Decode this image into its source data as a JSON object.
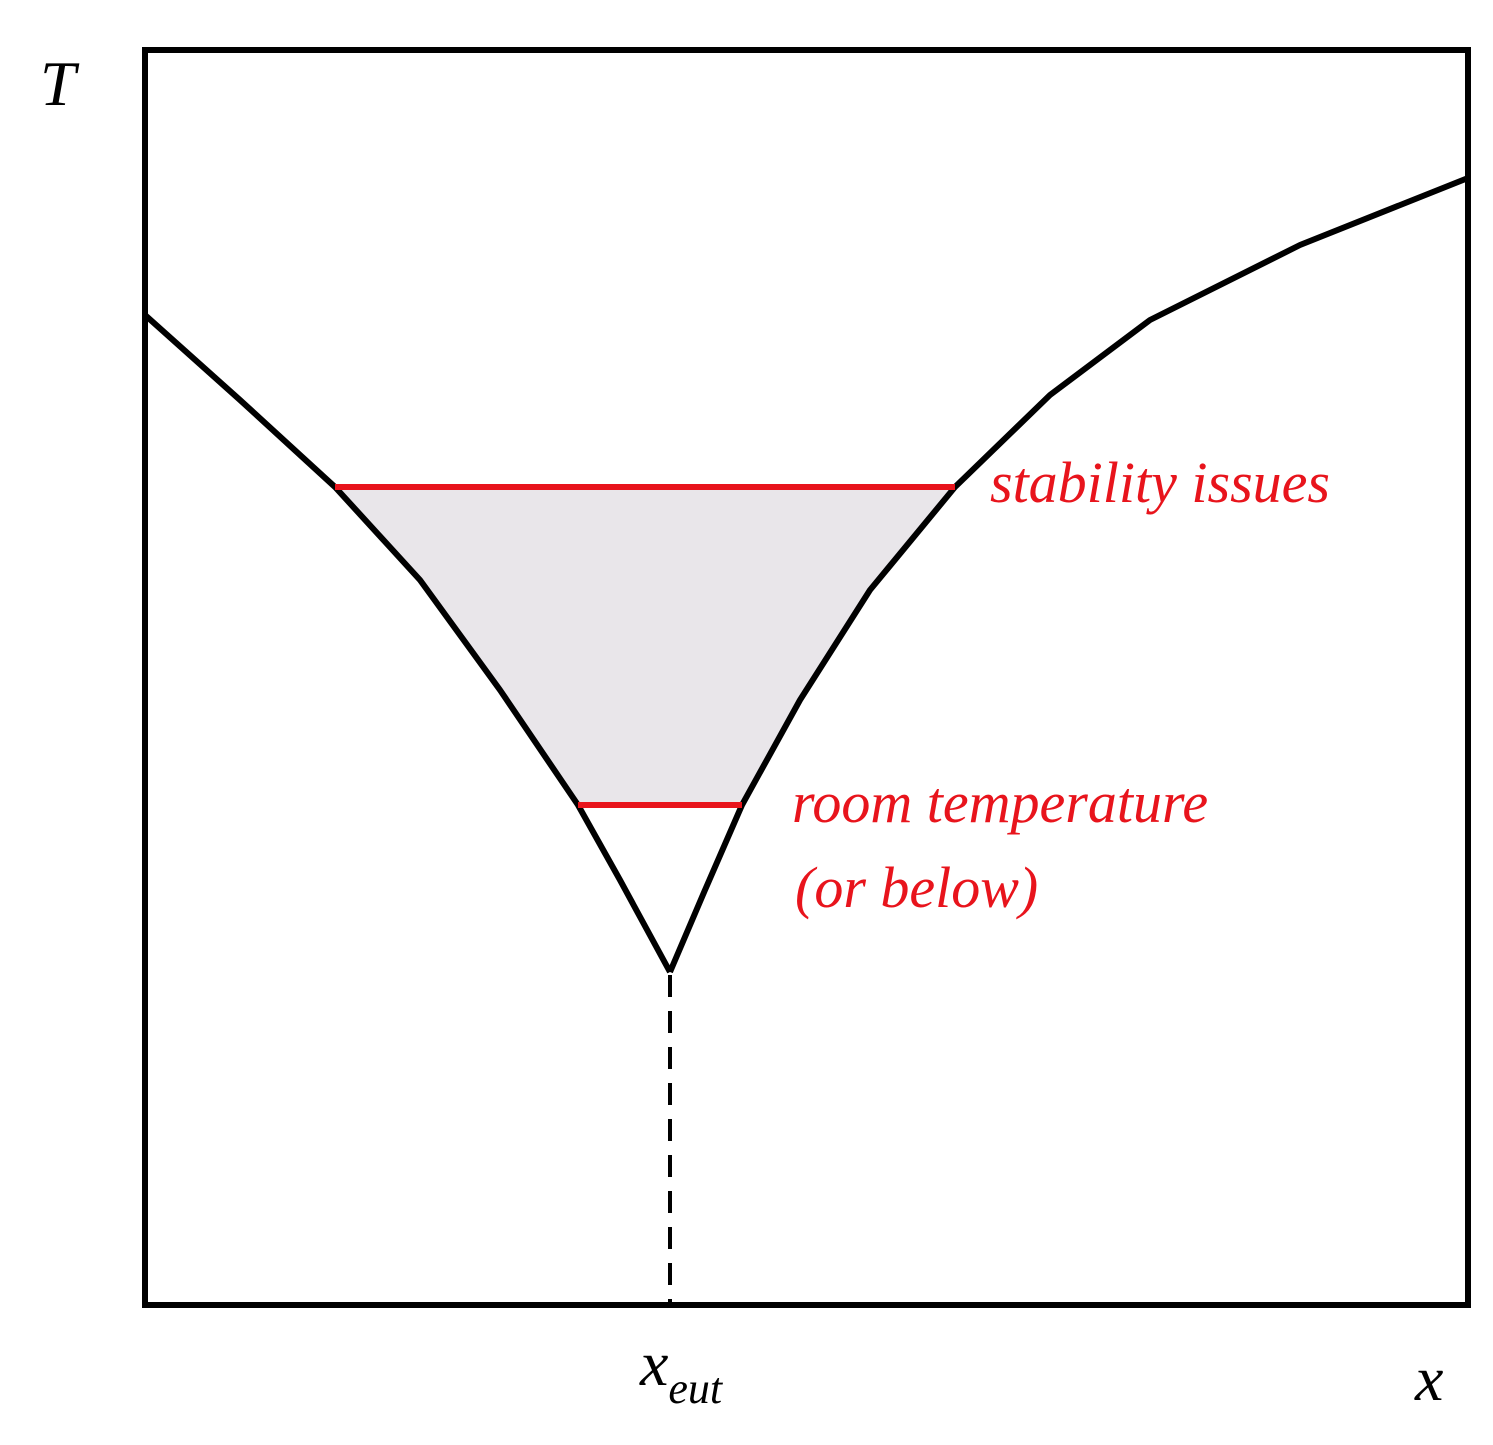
{
  "axes": {
    "y_label": "T",
    "x_label": "x"
  },
  "marker": {
    "label": "x",
    "subscript": "eut"
  },
  "annotations": [
    "stability issues",
    "room temperature",
    "(or below)"
  ]
}
